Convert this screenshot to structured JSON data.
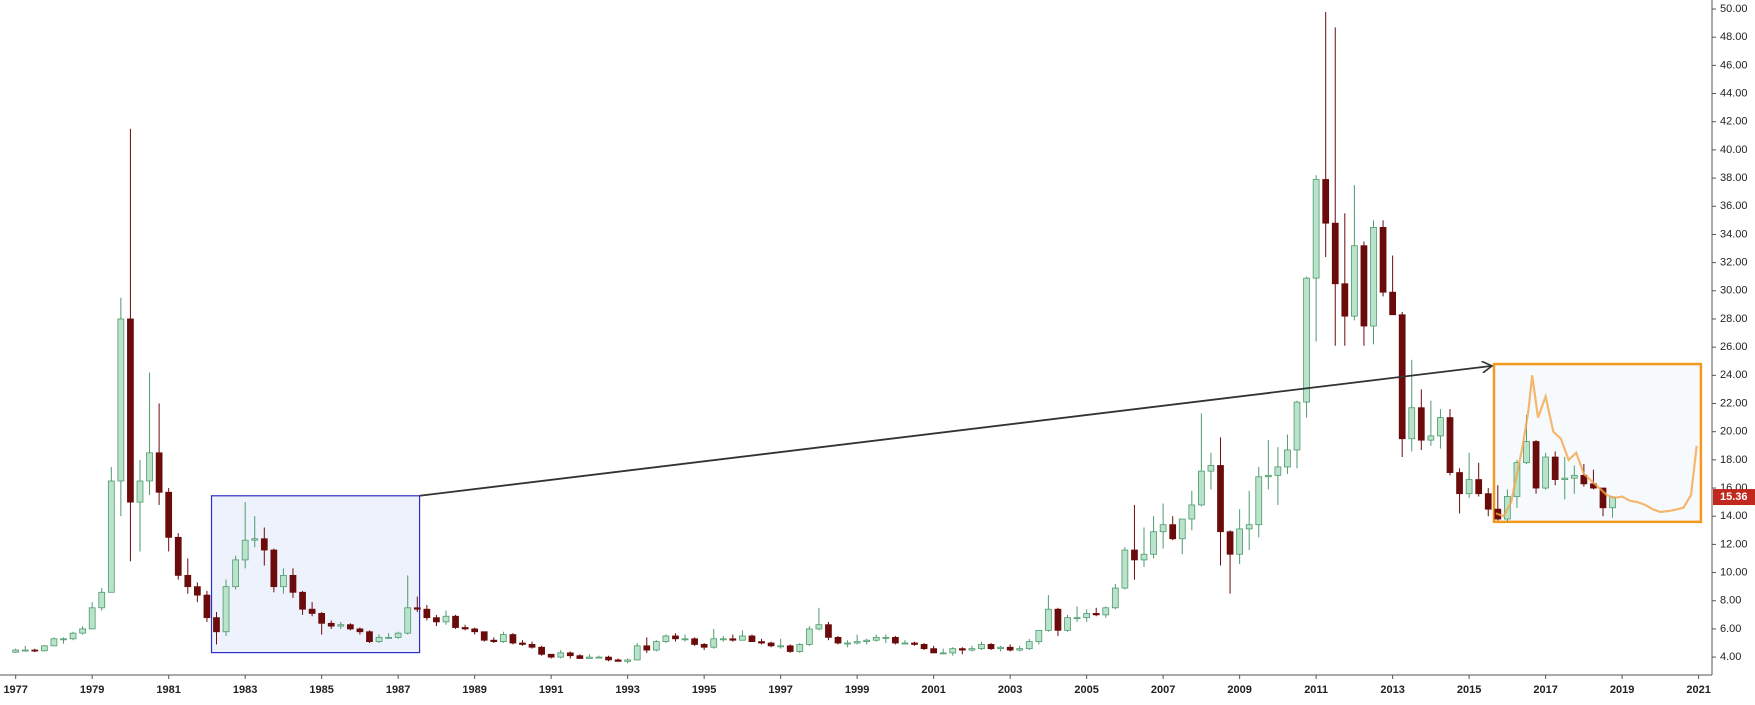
{
  "chart_data": {
    "type": "candlestick",
    "up_color": "#4f9a6e",
    "up_fill": "#b9e3cb",
    "down_color": "#6b0b0b",
    "xlim": [
      1976.59,
      2021.35
    ],
    "ylim": [
      2.73,
      50.64
    ],
    "xticks": [
      1977,
      1979,
      1981,
      1983,
      1985,
      1987,
      1989,
      1991,
      1993,
      1995,
      1997,
      1999,
      2001,
      2003,
      2005,
      2007,
      2009,
      2011,
      2013,
      2015,
      2017,
      2019,
      2021
    ],
    "yticks": [
      {
        "value": 4,
        "label": "4.00"
      },
      {
        "value": 6,
        "label": "6.00"
      },
      {
        "value": 8,
        "label": "8.00"
      },
      {
        "value": 10,
        "label": "10.00"
      },
      {
        "value": 12,
        "label": "12.00"
      },
      {
        "value": 14,
        "label": "14.00"
      },
      {
        "value": 16,
        "label": "16.00"
      },
      {
        "value": 18,
        "label": "18.00"
      },
      {
        "value": 20,
        "label": "20.00"
      },
      {
        "value": 22,
        "label": "22.00"
      },
      {
        "value": 24,
        "label": "24.00"
      },
      {
        "value": 26,
        "label": "26.00"
      },
      {
        "value": 28,
        "label": "28.00"
      },
      {
        "value": 30,
        "label": "30.00"
      },
      {
        "value": 32,
        "label": "32.00"
      },
      {
        "value": 34,
        "label": "34.00"
      },
      {
        "value": 36,
        "label": "36.00"
      },
      {
        "value": 38,
        "label": "38.00"
      },
      {
        "value": 40,
        "label": "40.00"
      },
      {
        "value": 42,
        "label": "42.00"
      },
      {
        "value": 44,
        "label": "44.00"
      },
      {
        "value": 46,
        "label": "46.00"
      },
      {
        "value": 48,
        "label": "48.00"
      },
      {
        "value": 50,
        "label": "50.00"
      }
    ],
    "grid": false,
    "last_price": 15.36,
    "last_price_color": "#c0281e",
    "x": [
      1977,
      1977.25,
      1977.5,
      1977.75,
      1978,
      1978.25,
      1978.5,
      1978.75,
      1979,
      1979.25,
      1979.5,
      1979.75,
      1980,
      1980.25,
      1980.5,
      1980.75,
      1981,
      1981.25,
      1981.5,
      1981.75,
      1982,
      1982.25,
      1982.5,
      1982.75,
      1983,
      1983.25,
      1983.5,
      1983.75,
      1984,
      1984.25,
      1984.5,
      1984.75,
      1985,
      1985.25,
      1985.5,
      1985.75,
      1986,
      1986.25,
      1986.5,
      1986.75,
      1987,
      1987.25,
      1987.5,
      1987.75,
      1988,
      1988.25,
      1988.5,
      1988.75,
      1989,
      1989.25,
      1989.5,
      1989.75,
      1990,
      1990.25,
      1990.5,
      1990.75,
      1991,
      1991.25,
      1991.5,
      1991.75,
      1992,
      1992.25,
      1992.5,
      1992.75,
      1993,
      1993.25,
      1993.5,
      1993.75,
      1994,
      1994.25,
      1994.5,
      1994.75,
      1995,
      1995.25,
      1995.5,
      1995.75,
      1996,
      1996.25,
      1996.5,
      1996.75,
      1997,
      1997.25,
      1997.5,
      1997.75,
      1998,
      1998.25,
      1998.5,
      1998.75,
      1999,
      1999.25,
      1999.5,
      1999.75,
      2000,
      2000.25,
      2000.5,
      2000.75,
      2001,
      2001.25,
      2001.5,
      2001.75,
      2002,
      2002.25,
      2002.5,
      2002.75,
      2003,
      2003.25,
      2003.5,
      2003.75,
      2004,
      2004.25,
      2004.5,
      2004.75,
      2005,
      2005.25,
      2005.5,
      2005.75,
      2006,
      2006.25,
      2006.5,
      2006.75,
      2007,
      2007.25,
      2007.5,
      2007.75,
      2008,
      2008.25,
      2008.5,
      2008.75,
      2009,
      2009.25,
      2009.5,
      2009.75,
      2010,
      2010.25,
      2010.5,
      2010.75,
      2011,
      2011.25,
      2011.5,
      2011.75,
      2012,
      2012.25,
      2012.5,
      2012.75,
      2013,
      2013.25,
      2013.5,
      2013.75,
      2014,
      2014.25,
      2014.5,
      2014.75,
      2015,
      2015.25,
      2015.5,
      2015.75,
      2016,
      2016.25,
      2016.5,
      2016.75,
      2017,
      2017.25,
      2017.5,
      2017.75,
      2018,
      2018.25,
      2018.5,
      2018.75
    ],
    "open": [
      4.35,
      4.5,
      4.5,
      4.45,
      4.8,
      5.3,
      5.3,
      5.7,
      6.0,
      7.5,
      8.6,
      16.5,
      28.0,
      15.0,
      16.5,
      18.5,
      15.7,
      12.5,
      9.8,
      9.0,
      8.4,
      6.8,
      5.8,
      9.0,
      10.9,
      12.3,
      12.4,
      11.6,
      9.0,
      9.8,
      8.6,
      7.4,
      7.1,
      6.4,
      6.2,
      6.3,
      6.0,
      5.8,
      5.1,
      5.4,
      5.4,
      5.7,
      7.5,
      7.4,
      6.8,
      6.5,
      6.9,
      6.1,
      6.0,
      5.8,
      5.2,
      5.1,
      5.6,
      5.0,
      4.9,
      4.7,
      4.2,
      4.0,
      4.3,
      4.1,
      3.9,
      4.0,
      4.0,
      3.8,
      3.7,
      3.8,
      4.8,
      4.5,
      5.1,
      5.5,
      5.3,
      5.3,
      4.9,
      4.7,
      5.3,
      5.3,
      5.2,
      5.5,
      5.1,
      5.0,
      4.8,
      4.8,
      4.4,
      4.9,
      6.0,
      6.3,
      5.4,
      5.0,
      5.0,
      5.1,
      5.2,
      5.4,
      5.4,
      5.0,
      5.0,
      4.9,
      4.6,
      4.3,
      4.3,
      4.6,
      4.5,
      4.6,
      4.9,
      4.6,
      4.7,
      4.5,
      4.6,
      5.1,
      5.9,
      7.4,
      5.9,
      6.8,
      6.8,
      7.1,
      7.0,
      7.5,
      8.9,
      11.6,
      10.9,
      11.3,
      12.9,
      13.4,
      12.4,
      13.8,
      14.8,
      17.2,
      17.6,
      12.9,
      11.3,
      13.1,
      13.4,
      16.8,
      16.9,
      17.5,
      18.7,
      22.1,
      30.9,
      37.9,
      34.8,
      30.5,
      28.2,
      33.2,
      27.5,
      34.5,
      29.9,
      28.3,
      19.5,
      21.7,
      19.4,
      19.7,
      21.0,
      17.1,
      15.6,
      16.6,
      15.6,
      14.5,
      13.8,
      15.4,
      17.8,
      19.3,
      16.0,
      18.2,
      16.6,
      16.7,
      16.9,
      16.3,
      16.0,
      14.6
    ],
    "high": [
      4.6,
      4.8,
      4.6,
      4.85,
      5.4,
      5.4,
      5.8,
      6.2,
      7.9,
      8.9,
      17.5,
      29.5,
      41.5,
      18.0,
      24.2,
      22.0,
      16.0,
      12.8,
      11.0,
      9.3,
      8.7,
      7.2,
      9.5,
      11.2,
      15.0,
      14.0,
      13.2,
      11.7,
      10.3,
      10.3,
      8.7,
      7.9,
      7.2,
      6.6,
      6.5,
      6.4,
      6.1,
      5.9,
      5.6,
      5.7,
      5.8,
      9.8,
      8.3,
      7.7,
      7.0,
      7.3,
      7.0,
      6.3,
      6.1,
      5.8,
      5.4,
      5.8,
      5.7,
      5.2,
      5.1,
      4.8,
      4.2,
      4.5,
      4.4,
      4.2,
      4.2,
      4.1,
      4.1,
      3.9,
      3.9,
      5.0,
      5.4,
      5.2,
      5.6,
      5.7,
      5.6,
      5.4,
      5.0,
      6.0,
      5.5,
      5.6,
      5.9,
      5.6,
      5.3,
      5.1,
      5.3,
      4.9,
      5.0,
      6.2,
      7.5,
      6.5,
      5.5,
      5.2,
      5.6,
      5.3,
      5.6,
      5.6,
      5.5,
      5.2,
      5.1,
      5.0,
      4.8,
      4.6,
      4.7,
      4.7,
      4.8,
      5.1,
      5.0,
      4.8,
      4.9,
      4.8,
      5.3,
      5.9,
      8.4,
      7.5,
      7.0,
      7.6,
      7.4,
      7.5,
      7.6,
      9.2,
      11.8,
      14.8,
      13.2,
      14.0,
      14.9,
      14.0,
      13.8,
      15.8,
      21.3,
      18.5,
      19.6,
      13.0,
      14.5,
      15.8,
      17.5,
      19.4,
      18.9,
      19.8,
      22.2,
      31.0,
      38.2,
      49.8,
      48.7,
      35.5,
      37.5,
      33.5,
      35.0,
      35.0,
      32.5,
      28.5,
      25.1,
      23.0,
      22.2,
      21.6,
      21.6,
      17.4,
      18.5,
      17.8,
      16.0,
      16.2,
      15.9,
      18.0,
      21.2,
      19.4,
      18.5,
      18.6,
      18.2,
      17.6,
      17.7,
      17.3,
      16.0,
      15.4
    ],
    "low": [
      4.3,
      4.4,
      4.35,
      4.4,
      4.8,
      4.95,
      5.2,
      5.6,
      6.0,
      7.3,
      8.6,
      14.0,
      10.8,
      11.5,
      15.5,
      14.8,
      11.5,
      9.5,
      8.5,
      7.9,
      6.5,
      4.9,
      5.5,
      8.8,
      10.3,
      11.8,
      10.5,
      8.6,
      8.5,
      8.2,
      7.0,
      6.9,
      5.6,
      6.0,
      6.0,
      5.9,
      5.6,
      5.0,
      5.0,
      5.3,
      5.3,
      5.6,
      7.2,
      6.6,
      6.2,
      6.3,
      6.0,
      5.9,
      5.6,
      5.1,
      5.0,
      5.0,
      4.9,
      4.8,
      4.6,
      4.1,
      3.9,
      3.9,
      3.9,
      3.9,
      3.9,
      3.9,
      3.7,
      3.7,
      3.55,
      3.8,
      4.3,
      4.4,
      5.0,
      5.1,
      5.1,
      4.8,
      4.5,
      4.6,
      5.1,
      5.1,
      5.2,
      5.1,
      4.9,
      4.7,
      4.6,
      4.3,
      4.3,
      4.8,
      5.9,
      5.2,
      4.9,
      4.7,
      4.9,
      4.9,
      5.1,
      5.0,
      4.9,
      4.9,
      4.8,
      4.5,
      4.3,
      4.2,
      4.1,
      4.2,
      4.4,
      4.5,
      4.5,
      4.4,
      4.4,
      4.4,
      4.5,
      4.9,
      5.8,
      5.5,
      5.8,
      6.5,
      6.5,
      6.9,
      6.8,
      7.4,
      8.8,
      9.5,
      10.4,
      11.0,
      11.7,
      12.3,
      11.3,
      13.0,
      14.7,
      15.9,
      10.5,
      8.5,
      10.6,
      11.6,
      12.5,
      15.9,
      14.8,
      17.0,
      17.4,
      21.0,
      26.4,
      32.4,
      26.1,
      26.1,
      27.9,
      26.1,
      26.2,
      29.6,
      28.3,
      18.2,
      18.6,
      18.7,
      19.0,
      18.8,
      16.9,
      14.2,
      15.3,
      15.4,
      14.0,
      13.7,
      13.6,
      14.6,
      17.7,
      15.6,
      15.9,
      16.2,
      15.2,
      15.6,
      16.1,
      15.9,
      14.0,
      13.9
    ],
    "close": [
      4.5,
      4.5,
      4.45,
      4.8,
      5.3,
      5.3,
      5.7,
      6.0,
      7.5,
      8.6,
      16.5,
      28.0,
      15.0,
      16.5,
      18.5,
      15.7,
      12.5,
      9.8,
      9.0,
      8.4,
      6.8,
      5.8,
      9.0,
      10.9,
      12.3,
      12.4,
      11.6,
      9.0,
      9.8,
      8.6,
      7.4,
      7.1,
      6.4,
      6.2,
      6.3,
      6.0,
      5.8,
      5.1,
      5.4,
      5.4,
      5.7,
      7.5,
      7.4,
      6.8,
      6.5,
      6.9,
      6.1,
      6.0,
      5.8,
      5.2,
      5.1,
      5.6,
      5.0,
      4.9,
      4.7,
      4.2,
      4.0,
      4.3,
      4.1,
      3.9,
      4.0,
      4.0,
      3.8,
      3.7,
      3.8,
      4.8,
      4.5,
      5.1,
      5.5,
      5.3,
      5.3,
      4.9,
      4.7,
      5.3,
      5.3,
      5.2,
      5.5,
      5.1,
      5.0,
      4.8,
      4.8,
      4.4,
      4.9,
      6.0,
      6.3,
      5.4,
      5.0,
      5.0,
      5.1,
      5.2,
      5.4,
      5.4,
      5.0,
      5.0,
      4.9,
      4.6,
      4.3,
      4.3,
      4.6,
      4.5,
      4.6,
      4.9,
      4.6,
      4.7,
      4.5,
      4.6,
      5.1,
      5.9,
      7.4,
      5.9,
      6.8,
      6.8,
      7.1,
      7.0,
      7.5,
      8.9,
      11.6,
      10.9,
      11.3,
      12.9,
      13.4,
      12.4,
      13.8,
      14.8,
      17.2,
      17.6,
      12.9,
      11.3,
      13.1,
      13.4,
      16.8,
      16.9,
      17.5,
      18.7,
      22.1,
      30.9,
      37.9,
      34.8,
      30.5,
      28.2,
      33.2,
      27.5,
      34.5,
      29.9,
      28.3,
      19.5,
      21.7,
      19.4,
      19.7,
      21.0,
      17.1,
      15.6,
      16.6,
      15.6,
      14.5,
      13.8,
      15.4,
      17.8,
      19.3,
      16.0,
      18.2,
      16.6,
      16.7,
      16.9,
      16.3,
      16.0,
      14.6,
      15.36
    ],
    "projection": {
      "color": "#f5a54a",
      "x": [
        2015.7,
        2015.9,
        2016.1,
        2016.25,
        2016.4,
        2016.55,
        2016.65,
        2016.8,
        2017.0,
        2017.2,
        2017.4,
        2017.6,
        2017.8,
        2018.0,
        2018.2,
        2018.4,
        2018.6,
        2018.8,
        2019.0,
        2019.2,
        2019.4,
        2019.6,
        2019.8,
        2020.0,
        2020.3,
        2020.6,
        2020.8,
        2020.95
      ],
      "values": [
        14.2,
        14.0,
        15.0,
        17.0,
        19.0,
        21.5,
        24.0,
        21.0,
        22.5,
        20.0,
        19.5,
        18.0,
        18.5,
        17.0,
        16.5,
        16.0,
        15.5,
        15.3,
        15.4,
        15.1,
        15.0,
        14.8,
        14.5,
        14.3,
        14.4,
        14.6,
        15.5,
        19.0
      ]
    },
    "boxes": [
      {
        "xlim": [
          1982.12,
          1987.56
        ],
        "ylim": [
          4.32,
          15.45
        ],
        "color": "#2a2fc8",
        "fill": "#eef2fc"
      },
      {
        "xlim": [
          2015.65,
          2021.06
        ],
        "ylim": [
          13.6,
          24.8
        ],
        "color": "#f39a1e",
        "fill": "#f6fafd"
      }
    ],
    "arrow": {
      "x": [
        1987.56,
        2015.65
      ],
      "y": [
        15.45,
        24.67
      ],
      "color": "#333333"
    }
  }
}
